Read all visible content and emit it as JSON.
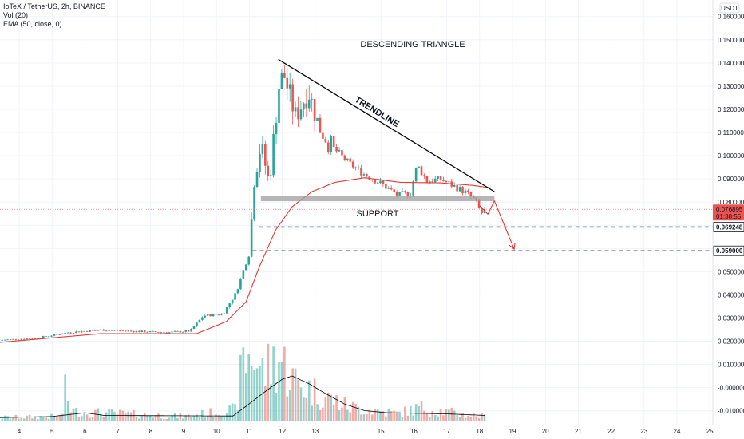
{
  "legend": {
    "symbol": "IoTeX / TetherUS, 2h, BINANCE",
    "volume": "Vol (20)",
    "ema": "EMA (50, close, 0)"
  },
  "currency_label": "USDT",
  "colors": {
    "up": "#26a69a",
    "down": "#ef5350",
    "ema": "#e53935",
    "volume_ma": "#000000",
    "support_band": "#9e9e9e",
    "current_price": "#ef5350",
    "level": "#131722"
  },
  "chart_data": {
    "type": "candlestick",
    "title": "",
    "x_ticks": [
      "4",
      "5",
      "6",
      "7",
      "8",
      "9",
      "10",
      "11",
      "12",
      "13",
      "15",
      "16",
      "17",
      "18",
      "19",
      "20",
      "21",
      "22",
      "23",
      "24",
      "25"
    ],
    "y_ticks": [
      "0.160000",
      "0.150000",
      "0.140000",
      "0.130000",
      "0.120000",
      "0.110000",
      "0.100000",
      "0.090000",
      "0.080000",
      "0.070000",
      "0.060000",
      "0.050000",
      "0.040000",
      "0.030000",
      "0.020000",
      "0.010000",
      "-0.000000",
      "-0.010000"
    ],
    "ylim": [
      -0.0125,
      0.163
    ],
    "price_anchors": [
      {
        "day": 3.4,
        "price": 0.0205
      },
      {
        "day": 4.5,
        "price": 0.0213
      },
      {
        "day": 5.5,
        "price": 0.0238
      },
      {
        "day": 6.5,
        "price": 0.0249
      },
      {
        "day": 7.5,
        "price": 0.0243
      },
      {
        "day": 8.5,
        "price": 0.0238
      },
      {
        "day": 9.2,
        "price": 0.0244
      },
      {
        "day": 9.6,
        "price": 0.031
      },
      {
        "day": 10.2,
        "price": 0.0318
      },
      {
        "day": 10.6,
        "price": 0.041
      },
      {
        "day": 10.85,
        "price": 0.052
      },
      {
        "day": 11.0,
        "price": 0.058
      },
      {
        "day": 11.15,
        "price": 0.09
      },
      {
        "day": 11.35,
        "price": 0.105
      },
      {
        "day": 11.6,
        "price": 0.088
      },
      {
        "day": 11.9,
        "price": 0.13
      },
      {
        "day": 12.05,
        "price": 0.135
      },
      {
        "day": 12.4,
        "price": 0.117
      },
      {
        "day": 12.8,
        "price": 0.128
      },
      {
        "day": 13.1,
        "price": 0.113
      },
      {
        "day": 13.5,
        "price": 0.104
      },
      {
        "day": 14.0,
        "price": 0.097
      },
      {
        "day": 14.5,
        "price": 0.092
      },
      {
        "day": 15.0,
        "price": 0.088
      },
      {
        "day": 15.5,
        "price": 0.083
      },
      {
        "day": 15.9,
        "price": 0.084
      },
      {
        "day": 16.1,
        "price": 0.096
      },
      {
        "day": 16.4,
        "price": 0.089
      },
      {
        "day": 16.8,
        "price": 0.09
      },
      {
        "day": 17.2,
        "price": 0.087
      },
      {
        "day": 17.6,
        "price": 0.084
      },
      {
        "day": 17.9,
        "price": 0.08
      },
      {
        "day": 18.05,
        "price": 0.075
      },
      {
        "day": 18.2,
        "price": 0.0769
      }
    ],
    "ema_anchors": [
      {
        "day": 3.4,
        "price": 0.0195
      },
      {
        "day": 6.5,
        "price": 0.0233
      },
      {
        "day": 9.4,
        "price": 0.0233
      },
      {
        "day": 10.3,
        "price": 0.0285
      },
      {
        "day": 10.9,
        "price": 0.037
      },
      {
        "day": 11.3,
        "price": 0.052
      },
      {
        "day": 11.8,
        "price": 0.068
      },
      {
        "day": 12.3,
        "price": 0.078
      },
      {
        "day": 12.9,
        "price": 0.0845
      },
      {
        "day": 13.6,
        "price": 0.0885
      },
      {
        "day": 14.5,
        "price": 0.0905
      },
      {
        "day": 15.6,
        "price": 0.0885
      },
      {
        "day": 16.8,
        "price": 0.0883
      },
      {
        "day": 17.8,
        "price": 0.0872
      },
      {
        "day": 18.4,
        "price": 0.086
      }
    ],
    "volume_anchors": [
      {
        "day": 3.4,
        "value": 0.4
      },
      {
        "day": 5.3,
        "value": 0.5
      },
      {
        "day": 5.4,
        "value": 3.0
      },
      {
        "day": 5.6,
        "value": 1.0
      },
      {
        "day": 9.0,
        "value": 0.5
      },
      {
        "day": 10.6,
        "value": 1.2
      },
      {
        "day": 10.8,
        "value": 6.0
      },
      {
        "day": 11.1,
        "value": 7.0
      },
      {
        "day": 11.4,
        "value": 5.0
      },
      {
        "day": 11.9,
        "value": 6.5
      },
      {
        "day": 12.4,
        "value": 4.0
      },
      {
        "day": 13.0,
        "value": 3.0
      },
      {
        "day": 14.0,
        "value": 1.5
      },
      {
        "day": 15.5,
        "value": 0.8
      },
      {
        "day": 16.2,
        "value": 1.4
      },
      {
        "day": 17.5,
        "value": 0.7
      },
      {
        "day": 18.2,
        "value": 0.5
      }
    ],
    "volume_ma_anchors": [
      {
        "day": 3.4,
        "value": 0.35
      },
      {
        "day": 5.0,
        "value": 0.45
      },
      {
        "day": 6.0,
        "value": 0.8
      },
      {
        "day": 6.6,
        "value": 0.55
      },
      {
        "day": 10.5,
        "value": 0.5
      },
      {
        "day": 10.9,
        "value": 1.4
      },
      {
        "day": 11.5,
        "value": 2.8
      },
      {
        "day": 12.0,
        "value": 3.9
      },
      {
        "day": 12.3,
        "value": 4.2
      },
      {
        "day": 12.8,
        "value": 3.5
      },
      {
        "day": 13.3,
        "value": 2.6
      },
      {
        "day": 13.9,
        "value": 1.6
      },
      {
        "day": 14.5,
        "value": 1.0
      },
      {
        "day": 15.2,
        "value": 0.8
      },
      {
        "day": 17.0,
        "value": 0.7
      },
      {
        "day": 18.2,
        "value": 0.55
      }
    ],
    "volume_max": 7.0,
    "trendline": {
      "start": {
        "day": 11.88,
        "price": 0.1415
      },
      "end": {
        "day": 18.45,
        "price": 0.0845
      }
    },
    "support_band": {
      "day_start": 11.35,
      "day_end": 18.45,
      "price_low": 0.0804,
      "price_high": 0.0825
    },
    "projection": [
      {
        "day": 18.0,
        "price": 0.0785
      },
      {
        "day": 18.25,
        "price": 0.0748
      },
      {
        "day": 18.45,
        "price": 0.0805
      },
      {
        "day": 19.05,
        "price": 0.0597
      }
    ],
    "levels": [
      {
        "price": 0.069248,
        "label": "0.069248",
        "day_start": 11.3
      },
      {
        "price": 0.059,
        "label": "0.059000",
        "day_start": 11.1
      }
    ],
    "current_price": {
      "price": 0.076895,
      "label": "0.076895",
      "countdown": "01:38:55"
    },
    "annotations": {
      "pattern": "DESCENDING TRIANGLE",
      "trendline": "TRENDLINE",
      "support": "SUPPORT"
    }
  }
}
